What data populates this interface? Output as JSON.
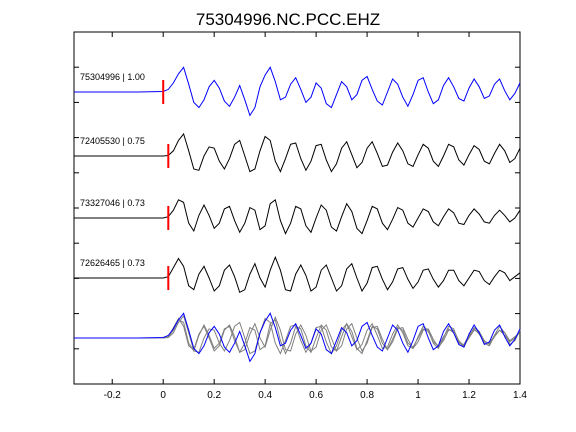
{
  "chart_data": {
    "type": "line",
    "title": "75304996.NC.PCC.EHZ",
    "xlabel": "",
    "ylabel": "",
    "xlim": [
      -0.35,
      1.4
    ],
    "x_ticks": [
      -0.2,
      0,
      0.2,
      0.4,
      0.6,
      0.8,
      1,
      1.2,
      1.4
    ],
    "x_tick_labels": [
      "-0.2",
      "0",
      "0.2",
      "0.4",
      "0.6",
      "0.8",
      "1",
      "1.2",
      "1.4"
    ],
    "y_tick_count": 11,
    "grid": false,
    "colors": {
      "master": "#0000ff",
      "other": "#000000",
      "stack_other": "#808080",
      "pick": "#ff0000"
    },
    "series": [
      {
        "name": "75304996 | 1.00",
        "role": "master",
        "pick_time": 0.0,
        "x": [
          -0.35,
          -0.1,
          0.0,
          0.02,
          0.04,
          0.06,
          0.08,
          0.1,
          0.12,
          0.14,
          0.16,
          0.18,
          0.2,
          0.22,
          0.24,
          0.26,
          0.28,
          0.3,
          0.32,
          0.34,
          0.36,
          0.38,
          0.4,
          0.42,
          0.44,
          0.46,
          0.48,
          0.5,
          0.52,
          0.54,
          0.56,
          0.58,
          0.6,
          0.62,
          0.64,
          0.66,
          0.68,
          0.7,
          0.72,
          0.74,
          0.76,
          0.78,
          0.8,
          0.82,
          0.84,
          0.86,
          0.88,
          0.9,
          0.92,
          0.94,
          0.96,
          0.98,
          1.0,
          1.02,
          1.04,
          1.06,
          1.08,
          1.1,
          1.12,
          1.14,
          1.16,
          1.18,
          1.2,
          1.22,
          1.24,
          1.26,
          1.28,
          1.3,
          1.32,
          1.34,
          1.36,
          1.38,
          1.4
        ],
        "y": [
          0.0,
          0.0,
          0.02,
          0.1,
          0.35,
          0.7,
          0.95,
          0.3,
          -0.4,
          -0.6,
          -0.3,
          0.2,
          0.45,
          0.15,
          -0.35,
          -0.55,
          -0.2,
          0.25,
          -0.3,
          -0.9,
          -0.6,
          0.2,
          0.65,
          0.95,
          0.4,
          -0.3,
          -0.2,
          0.3,
          0.55,
          0.1,
          -0.4,
          -0.2,
          0.35,
          0.15,
          -0.45,
          -0.6,
          -0.1,
          0.4,
          0.2,
          -0.3,
          -0.1,
          0.45,
          0.6,
          0.1,
          -0.35,
          -0.5,
          0.0,
          0.5,
          0.3,
          -0.2,
          -0.55,
          -0.1,
          0.45,
          0.55,
          0.0,
          -0.45,
          -0.3,
          0.25,
          0.55,
          0.2,
          -0.25,
          -0.35,
          0.15,
          0.5,
          0.2,
          -0.25,
          -0.15,
          0.3,
          0.5,
          0.05,
          -0.3,
          -0.05,
          0.35
        ]
      },
      {
        "name": "72405530 | 0.75",
        "role": "other",
        "pick_time": 0.02,
        "x": [
          -0.35,
          -0.1,
          0.0,
          0.02,
          0.04,
          0.06,
          0.08,
          0.1,
          0.12,
          0.14,
          0.16,
          0.18,
          0.2,
          0.22,
          0.24,
          0.26,
          0.28,
          0.3,
          0.32,
          0.34,
          0.36,
          0.38,
          0.4,
          0.42,
          0.44,
          0.46,
          0.48,
          0.5,
          0.52,
          0.54,
          0.56,
          0.58,
          0.6,
          0.62,
          0.64,
          0.66,
          0.68,
          0.7,
          0.72,
          0.74,
          0.76,
          0.78,
          0.8,
          0.82,
          0.84,
          0.86,
          0.88,
          0.9,
          0.92,
          0.94,
          0.96,
          0.98,
          1.0,
          1.02,
          1.04,
          1.06,
          1.08,
          1.1,
          1.12,
          1.14,
          1.16,
          1.18,
          1.2,
          1.22,
          1.24,
          1.26,
          1.28,
          1.3,
          1.32,
          1.34,
          1.36,
          1.38,
          1.4
        ],
        "y": [
          0.0,
          0.0,
          0.0,
          0.02,
          0.2,
          0.6,
          0.85,
          0.2,
          -0.5,
          -0.55,
          0.0,
          0.35,
          0.3,
          -0.2,
          -0.5,
          -0.1,
          0.45,
          0.6,
          0.0,
          -0.6,
          -0.5,
          0.2,
          0.75,
          0.6,
          -0.2,
          -0.6,
          -0.1,
          0.45,
          0.5,
          -0.1,
          -0.55,
          -0.2,
          0.4,
          0.45,
          -0.15,
          -0.6,
          -0.3,
          0.3,
          0.55,
          0.05,
          -0.45,
          -0.25,
          0.3,
          0.55,
          0.1,
          -0.4,
          -0.35,
          0.15,
          0.5,
          0.2,
          -0.3,
          -0.4,
          0.05,
          0.45,
          0.3,
          -0.2,
          -0.4,
          0.0,
          0.45,
          0.35,
          -0.15,
          -0.35,
          0.05,
          0.4,
          0.25,
          -0.2,
          -0.3,
          0.1,
          0.45,
          0.2,
          -0.25,
          -0.1,
          0.3
        ]
      },
      {
        "name": "73327046 | 0.73",
        "role": "other",
        "pick_time": 0.02,
        "x": [
          -0.35,
          -0.1,
          0.0,
          0.02,
          0.04,
          0.06,
          0.08,
          0.1,
          0.12,
          0.14,
          0.16,
          0.18,
          0.2,
          0.22,
          0.24,
          0.26,
          0.28,
          0.3,
          0.32,
          0.34,
          0.36,
          0.38,
          0.4,
          0.42,
          0.44,
          0.46,
          0.48,
          0.5,
          0.52,
          0.54,
          0.56,
          0.58,
          0.6,
          0.62,
          0.64,
          0.66,
          0.68,
          0.7,
          0.72,
          0.74,
          0.76,
          0.78,
          0.8,
          0.82,
          0.84,
          0.86,
          0.88,
          0.9,
          0.92,
          0.94,
          0.96,
          0.98,
          1.0,
          1.02,
          1.04,
          1.06,
          1.08,
          1.1,
          1.12,
          1.14,
          1.16,
          1.18,
          1.2,
          1.22,
          1.24,
          1.26,
          1.28,
          1.3,
          1.32,
          1.34,
          1.36,
          1.38,
          1.4
        ],
        "y": [
          0.0,
          0.0,
          0.0,
          0.05,
          0.3,
          0.7,
          0.6,
          -0.2,
          -0.5,
          0.1,
          0.5,
          0.1,
          -0.4,
          -0.2,
          0.35,
          0.45,
          -0.1,
          -0.55,
          -0.2,
          0.4,
          0.3,
          -0.45,
          -0.3,
          0.55,
          0.7,
          -0.1,
          -0.6,
          -0.2,
          0.45,
          0.35,
          -0.3,
          -0.55,
          0.0,
          0.5,
          0.3,
          -0.35,
          -0.5,
          0.05,
          0.55,
          0.25,
          -0.4,
          -0.6,
          -0.1,
          0.45,
          0.35,
          -0.2,
          -0.45,
          -0.05,
          0.4,
          0.3,
          -0.2,
          -0.35,
          0.0,
          0.35,
          0.25,
          -0.15,
          -0.3,
          0.05,
          0.35,
          0.2,
          -0.2,
          -0.25,
          0.1,
          0.35,
          0.15,
          -0.15,
          -0.2,
          0.1,
          0.3,
          0.1,
          -0.15,
          0.0,
          0.3
        ]
      },
      {
        "name": "72626465 | 0.73",
        "role": "other",
        "pick_time": 0.02,
        "x": [
          -0.35,
          -0.1,
          0.0,
          0.02,
          0.04,
          0.06,
          0.08,
          0.1,
          0.12,
          0.14,
          0.16,
          0.18,
          0.2,
          0.22,
          0.24,
          0.26,
          0.28,
          0.3,
          0.32,
          0.34,
          0.36,
          0.38,
          0.4,
          0.42,
          0.44,
          0.46,
          0.48,
          0.5,
          0.52,
          0.54,
          0.56,
          0.58,
          0.6,
          0.62,
          0.64,
          0.66,
          0.68,
          0.7,
          0.72,
          0.74,
          0.76,
          0.78,
          0.8,
          0.82,
          0.84,
          0.86,
          0.88,
          0.9,
          0.92,
          0.94,
          0.96,
          0.98,
          1.0,
          1.02,
          1.04,
          1.06,
          1.08,
          1.1,
          1.12,
          1.14,
          1.16,
          1.18,
          1.2,
          1.22,
          1.24,
          1.26,
          1.28,
          1.3,
          1.32,
          1.34,
          1.36,
          1.38,
          1.4
        ],
        "y": [
          0.0,
          0.0,
          0.0,
          0.05,
          0.4,
          0.75,
          0.45,
          -0.3,
          -0.45,
          0.15,
          0.45,
          0.0,
          -0.5,
          -0.3,
          0.3,
          0.5,
          0.05,
          -0.55,
          -0.45,
          0.15,
          0.55,
          0.0,
          -0.35,
          0.3,
          0.8,
          0.3,
          -0.45,
          -0.5,
          0.15,
          0.5,
          0.1,
          -0.5,
          -0.35,
          0.3,
          0.5,
          0.0,
          -0.5,
          -0.3,
          0.35,
          0.55,
          0.0,
          -0.5,
          -0.2,
          0.4,
          0.45,
          -0.05,
          -0.45,
          -0.15,
          0.35,
          0.4,
          -0.05,
          -0.4,
          -0.15,
          0.3,
          0.35,
          -0.05,
          -0.35,
          -0.1,
          0.3,
          0.3,
          -0.1,
          -0.3,
          0.0,
          0.3,
          0.25,
          -0.1,
          -0.25,
          0.05,
          0.3,
          0.2,
          -0.1,
          0.05,
          0.2
        ]
      }
    ]
  }
}
